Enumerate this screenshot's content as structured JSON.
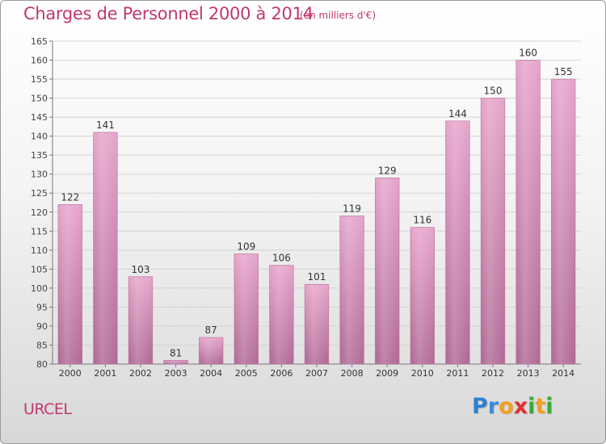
{
  "title": "Charges de Personnel 2000 à 2014",
  "subtitle": "(en milliers d'€)",
  "commune": "URCEL",
  "logo": {
    "letters": [
      {
        "ch": "P",
        "color": "#2f7fd6"
      },
      {
        "ch": "r",
        "color": "#3a8ad8"
      },
      {
        "ch": "o",
        "color": "#f0a020"
      },
      {
        "ch": "x",
        "color": "#e03030"
      },
      {
        "ch": "i",
        "color": "#3aa83a"
      },
      {
        "ch": "t",
        "color": "#f0a020"
      },
      {
        "ch": "i",
        "color": "#3aa83a"
      }
    ]
  },
  "chart_data": {
    "type": "bar",
    "categories": [
      "2000",
      "2001",
      "2002",
      "2003",
      "2004",
      "2005",
      "2006",
      "2007",
      "2008",
      "2009",
      "2010",
      "2011",
      "2012",
      "2013",
      "2014"
    ],
    "values": [
      122,
      141,
      103,
      81,
      87,
      109,
      106,
      101,
      119,
      129,
      116,
      144,
      150,
      160,
      155
    ],
    "ylim": [
      80,
      165
    ],
    "yticks": [
      80,
      85,
      90,
      95,
      100,
      105,
      110,
      115,
      120,
      125,
      130,
      135,
      140,
      145,
      150,
      155,
      160,
      165
    ],
    "grid": true,
    "bar_color": "#d07aa8"
  }
}
